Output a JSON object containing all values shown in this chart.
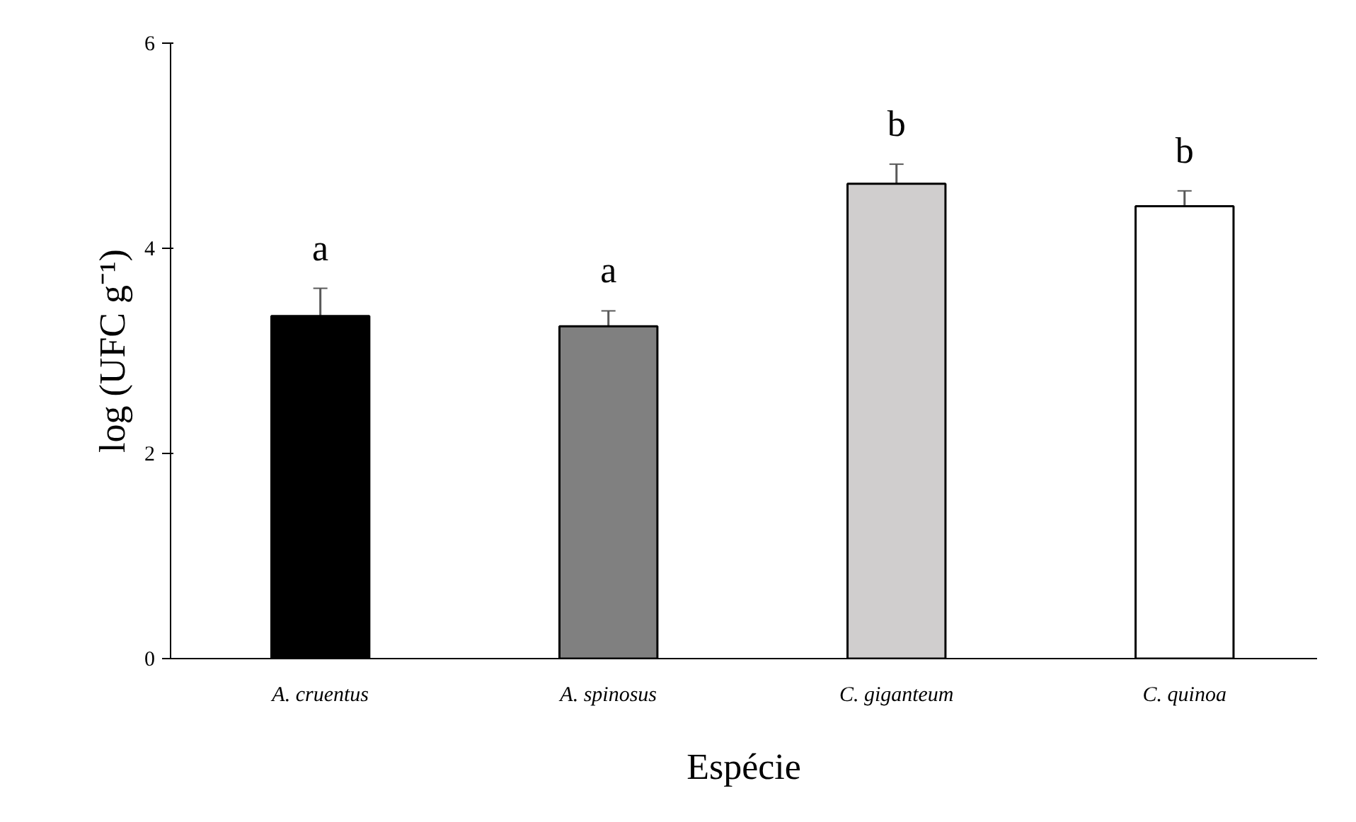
{
  "chart_data": {
    "type": "bar",
    "xlabel": "Espécie",
    "ylabel": "log (UFC g⁻¹)",
    "categories": [
      "A. cruentus",
      "A. spinosus",
      "C. giganteum",
      "C. quinoa"
    ],
    "values": [
      3.34,
      3.24,
      4.63,
      4.41
    ],
    "colors": [
      "#000000",
      "#808080",
      "#d0cece",
      "#ffffff"
    ],
    "errors": [
      0.27,
      0.15,
      0.19,
      0.15
    ],
    "ylim": [
      0,
      6
    ],
    "yticks": [
      0,
      2,
      4,
      6
    ],
    "grid": false,
    "annotations": [
      "a",
      "a",
      "b",
      "b"
    ]
  }
}
